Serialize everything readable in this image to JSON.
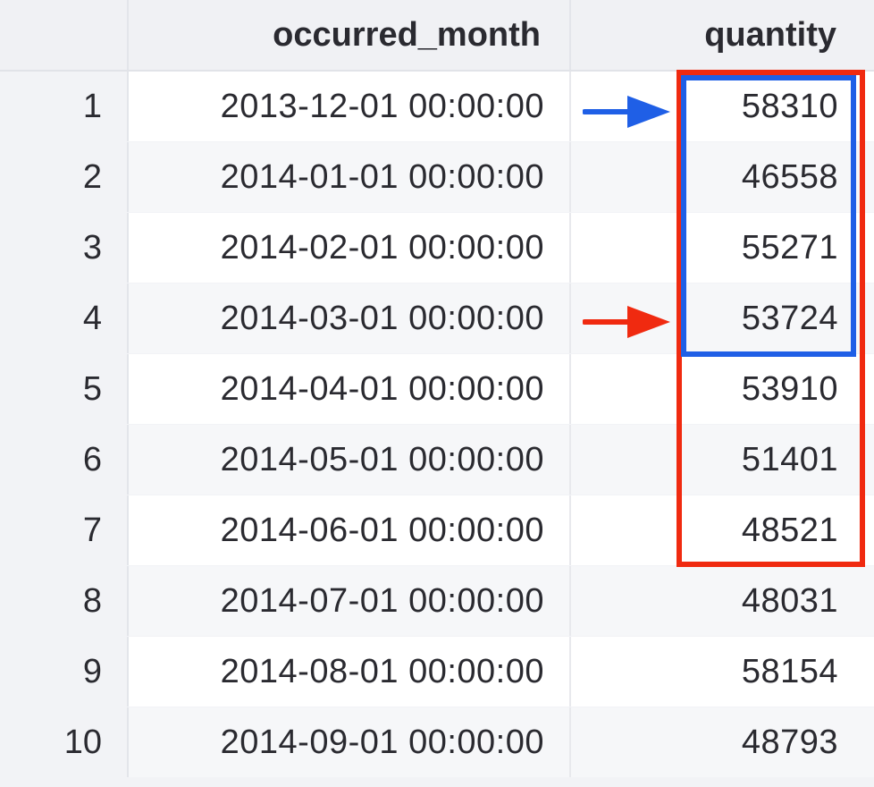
{
  "table": {
    "columns": [
      "",
      "occurred_month",
      "quantity"
    ],
    "rows": [
      {
        "index": "1",
        "occurred_month": "2013-12-01 00:00:00",
        "quantity": "58310"
      },
      {
        "index": "2",
        "occurred_month": "2014-01-01 00:00:00",
        "quantity": "46558"
      },
      {
        "index": "3",
        "occurred_month": "2014-02-01 00:00:00",
        "quantity": "55271"
      },
      {
        "index": "4",
        "occurred_month": "2014-03-01 00:00:00",
        "quantity": "53724"
      },
      {
        "index": "5",
        "occurred_month": "2014-04-01 00:00:00",
        "quantity": "53910"
      },
      {
        "index": "6",
        "occurred_month": "2014-05-01 00:00:00",
        "quantity": "51401"
      },
      {
        "index": "7",
        "occurred_month": "2014-06-01 00:00:00",
        "quantity": "48521"
      },
      {
        "index": "8",
        "occurred_month": "2014-07-01 00:00:00",
        "quantity": "48031"
      },
      {
        "index": "9",
        "occurred_month": "2014-08-01 00:00:00",
        "quantity": "58154"
      },
      {
        "index": "10",
        "occurred_month": "2014-09-01 00:00:00",
        "quantity": "48793"
      }
    ]
  },
  "annotations": {
    "blue_box": {
      "color": "#1f5fe6",
      "rows": "1-4"
    },
    "red_box": {
      "color": "#f02a10",
      "rows": "1-7"
    },
    "blue_arrow": {
      "color": "#1f5fe6",
      "points_to_row": "1"
    },
    "red_arrow": {
      "color": "#f02a10",
      "points_to_row": "4"
    }
  }
}
